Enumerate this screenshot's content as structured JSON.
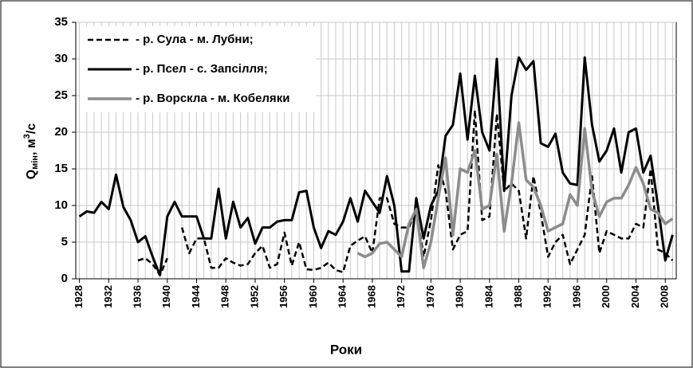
{
  "chart_data": {
    "type": "line",
    "x_label": "Роки",
    "y_label_parts": [
      "Q",
      "мін",
      ", м",
      "3",
      "/с"
    ],
    "x": [
      1928,
      1929,
      1930,
      1931,
      1932,
      1933,
      1934,
      1935,
      1936,
      1937,
      1938,
      1939,
      1940,
      1941,
      1942,
      1943,
      1944,
      1945,
      1946,
      1947,
      1948,
      1949,
      1950,
      1951,
      1952,
      1953,
      1954,
      1955,
      1956,
      1957,
      1958,
      1959,
      1960,
      1961,
      1962,
      1963,
      1964,
      1965,
      1966,
      1967,
      1968,
      1969,
      1970,
      1971,
      1972,
      1973,
      1974,
      1975,
      1976,
      1977,
      1978,
      1979,
      1980,
      1981,
      1982,
      1983,
      1984,
      1985,
      1986,
      1987,
      1988,
      1989,
      1990,
      1991,
      1992,
      1993,
      1994,
      1995,
      1996,
      1997,
      1998,
      1999,
      2000,
      2001,
      2002,
      2003,
      2004,
      2005,
      2006,
      2007,
      2008,
      2009
    ],
    "series": [
      {
        "name": "- р. Сула - м. Лубни;",
        "color": "#000000",
        "dash": true,
        "values": [
          null,
          null,
          null,
          null,
          null,
          null,
          null,
          null,
          2.5,
          2.8,
          2,
          0.5,
          2.8,
          null,
          7,
          3.5,
          5.5,
          5.5,
          1.5,
          1.5,
          2.8,
          2.2,
          1.8,
          2,
          3.5,
          4.5,
          1.5,
          2,
          6.3,
          1.8,
          5,
          1.3,
          1.2,
          1.5,
          2.2,
          1.2,
          0.9,
          4.5,
          5.2,
          5.8,
          3.5,
          11,
          11,
          7.5,
          7,
          7,
          9.5,
          3,
          8,
          15.5,
          12,
          4,
          6,
          6.5,
          23,
          8,
          8.5,
          22.5,
          12,
          13,
          12,
          5.5,
          14,
          9,
          3,
          5,
          6,
          2,
          4,
          6,
          14,
          3.5,
          6.5,
          6,
          5.5,
          5.5,
          7.5,
          7,
          15,
          4,
          3.5,
          2.5
        ]
      },
      {
        "name": "- р. Псел - с. Запсілля;",
        "color": "#000000",
        "dash": false,
        "values": [
          8.5,
          9.2,
          9,
          10.5,
          9.5,
          14.2,
          9.8,
          8,
          5,
          5.8,
          3,
          0.5,
          8.5,
          10.5,
          8.5,
          8.5,
          8.5,
          5.5,
          5.5,
          12.3,
          5.5,
          10.5,
          7,
          8.3,
          4.8,
          7,
          7,
          7.8,
          8,
          8,
          11.8,
          12,
          7,
          4.2,
          6.5,
          6,
          7.8,
          11,
          7.8,
          12,
          10.5,
          9,
          14,
          10,
          1,
          1,
          11,
          5.5,
          10,
          12,
          19.5,
          21,
          28,
          19,
          27.7,
          20,
          17.5,
          30,
          12,
          25,
          30.2,
          28.5,
          29.7,
          18.5,
          18,
          19.8,
          14.5,
          13,
          12.8,
          30.2,
          21,
          16,
          17.5,
          20.5,
          14.5,
          20,
          20.5,
          14.5,
          16.8,
          10,
          2.5,
          6
        ]
      },
      {
        "name": "- р. Ворскла - м. Кобеляки",
        "color": "#8c8c8c",
        "dash": false,
        "values": [
          null,
          null,
          null,
          null,
          null,
          null,
          null,
          null,
          null,
          null,
          null,
          null,
          null,
          null,
          null,
          null,
          null,
          null,
          null,
          null,
          null,
          null,
          null,
          null,
          null,
          null,
          null,
          null,
          null,
          null,
          null,
          null,
          null,
          null,
          null,
          null,
          null,
          null,
          3.5,
          3,
          3.5,
          4.8,
          5,
          4,
          3,
          7.5,
          9.5,
          1.5,
          5,
          11,
          16.5,
          6,
          15,
          14.5,
          17.5,
          9.5,
          10,
          17,
          6.5,
          13,
          21.3,
          13.5,
          12.5,
          10,
          6.5,
          7,
          7.5,
          11.5,
          10,
          20.5,
          12,
          8.5,
          10.5,
          11,
          11,
          12.8,
          15.2,
          13,
          9.5,
          9,
          7.5,
          8.2
        ]
      }
    ],
    "xlim": [
      1927.5,
      2009.5
    ],
    "xticks": [
      1928,
      1932,
      1936,
      1940,
      1944,
      1948,
      1952,
      1956,
      1960,
      1964,
      1968,
      1972,
      1976,
      1980,
      1984,
      1988,
      1992,
      1996,
      2000,
      2004,
      2008
    ],
    "ylim": [
      0,
      35
    ],
    "yticks": [
      0,
      5,
      10,
      15,
      20,
      25,
      30,
      35
    ],
    "grid": true,
    "legend": "upper left"
  }
}
